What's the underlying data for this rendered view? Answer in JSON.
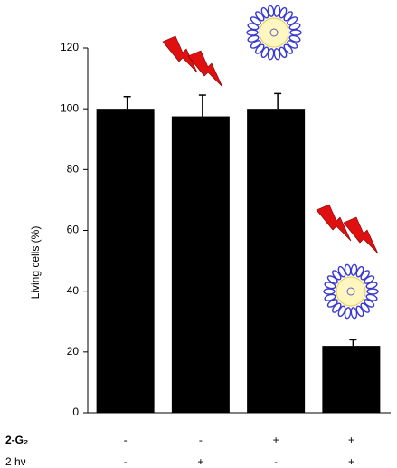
{
  "chart_data": {
    "type": "bar",
    "y_label": "Living cells (%)",
    "values": [
      100,
      97.5,
      100,
      22
    ],
    "errors": [
      4,
      7,
      5,
      2
    ],
    "color": "#000000",
    "ylim": [
      0,
      120
    ],
    "yticks": [
      0,
      20,
      40,
      60,
      80,
      100,
      120
    ],
    "conditions": [
      {
        "label": "2-G₂",
        "values": [
          "-",
          "-",
          "+",
          "+"
        ]
      },
      {
        "label": "2 hν",
        "values": [
          "-",
          "+",
          "-",
          "+"
        ]
      }
    ]
  }
}
